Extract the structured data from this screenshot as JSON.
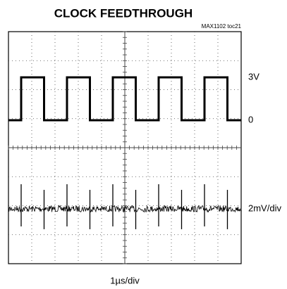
{
  "chart_data": {
    "type": "oscilloscope",
    "title": "CLOCK FEEDTHROUGH",
    "note": "MAX1102 toc21",
    "trace_labels": [
      "3V",
      "0",
      "2mV/div"
    ],
    "x_label": "1µs/div"
  }
}
